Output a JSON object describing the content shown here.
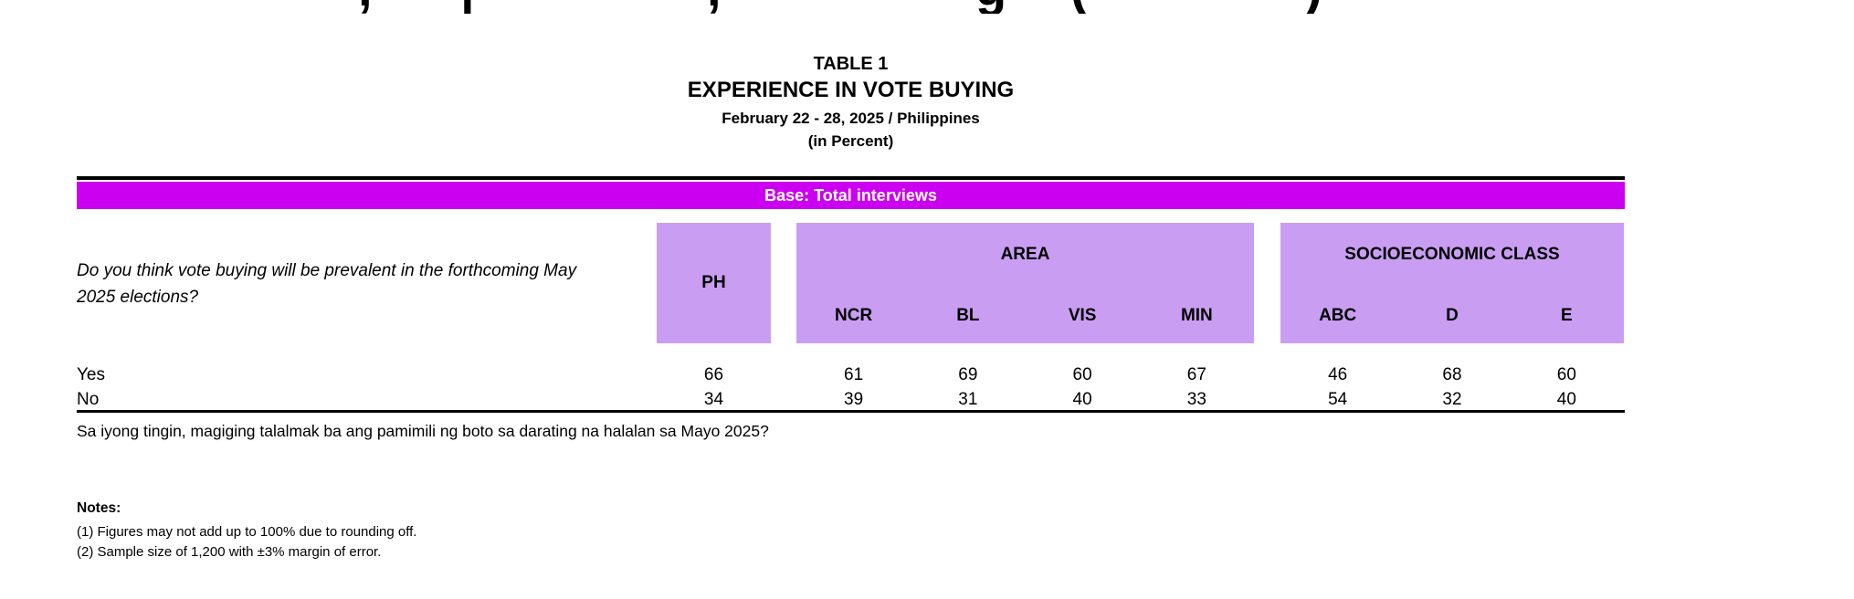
{
  "cropped_line": {
    "fragments": [
      ",",
      "|",
      ",",
      "g",
      "(",
      ")"
    ]
  },
  "title_block": {
    "table_no": "TABLE 1",
    "title": "EXPERIENCE IN VOTE BUYING",
    "subtitle": "February 22 - 28, 2025 / Philippines",
    "unit": "(in Percent)"
  },
  "banner": {
    "text": "Base: Total interviews"
  },
  "colors": {
    "banner_bg": "#cc00f0",
    "banner_text": "#ffffff",
    "header_cell_bg": "#c99ef2",
    "rule": "#000000"
  },
  "survey_table": {
    "question": "Do you think vote buying will be prevalent in the forthcoming May 2025 elections?",
    "ph_label": "PH",
    "area_group": {
      "label": "AREA",
      "columns": [
        "NCR",
        "BL",
        "VIS",
        "MIN"
      ]
    },
    "ses_group": {
      "label": "SOCIOECONOMIC CLASS",
      "columns": [
        "ABC",
        "D",
        "E"
      ]
    },
    "rows": [
      {
        "label": "Yes",
        "values": [
          66,
          61,
          69,
          60,
          67,
          46,
          68,
          60
        ]
      },
      {
        "label": "No",
        "values": [
          34,
          39,
          31,
          40,
          33,
          54,
          32,
          40
        ]
      }
    ],
    "question_translation": "Sa iyong tingin, magiging talalmak ba ang pamimili ng boto sa darating na halalan sa Mayo 2025?"
  },
  "notes": {
    "heading": "Notes:",
    "items": [
      "(1) Figures may not add up to 100% due to rounding off.",
      "(2) Sample size of 1,200 with ±3% margin of error."
    ]
  }
}
